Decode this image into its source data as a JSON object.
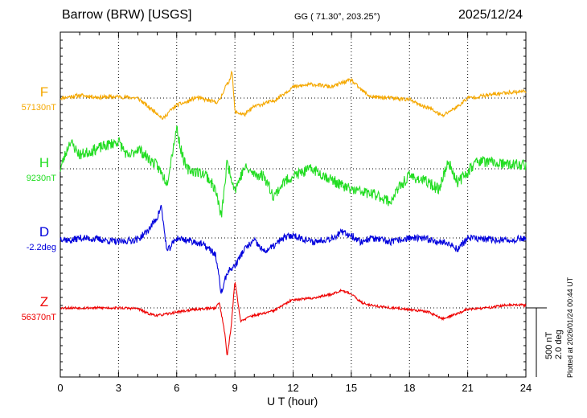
{
  "header": {
    "station": "Barrow (BRW)  [USGS]",
    "coordinates": "GG ( 71.30°, 203.25°)",
    "date": "2025/12/24"
  },
  "footer": {
    "plotted": "Plotted at 2026/01/24 00:44 UT"
  },
  "scale": {
    "nt": "500 nT",
    "deg": "2.0 deg"
  },
  "colors": {
    "F": "#f5a800",
    "H": "#22dd22",
    "D": "#0000dd",
    "Z": "#ee0000"
  },
  "chart_data": {
    "type": "line",
    "xlabel": "U T (hour)",
    "xlim": [
      0,
      24
    ],
    "x_ticks": [
      "0",
      "3",
      "6",
      "9",
      "12",
      "15",
      "18",
      "21",
      "24"
    ],
    "series": [
      {
        "name": "F",
        "baseline": "57130nT",
        "unit": "nT",
        "key": [
          [
            0,
            0
          ],
          [
            1,
            20
          ],
          [
            2,
            5
          ],
          [
            3,
            10
          ],
          [
            4,
            0
          ],
          [
            4.5,
            -60
          ],
          [
            5,
            -110
          ],
          [
            5.3,
            -150
          ],
          [
            5.6,
            -100
          ],
          [
            6,
            -50
          ],
          [
            6.5,
            -30
          ],
          [
            7,
            5
          ],
          [
            8,
            -30
          ],
          [
            8.2,
            -20
          ],
          [
            8.5,
            80
          ],
          [
            8.7,
            120
          ],
          [
            8.85,
            200
          ],
          [
            9,
            -100
          ],
          [
            9.5,
            -120
          ],
          [
            10,
            -60
          ],
          [
            11,
            -20
          ],
          [
            12,
            80
          ],
          [
            13,
            100
          ],
          [
            14,
            80
          ],
          [
            14.5,
            110
          ],
          [
            15,
            130
          ],
          [
            15.5,
            60
          ],
          [
            16,
            10
          ],
          [
            17,
            0
          ],
          [
            18,
            -10
          ],
          [
            18.5,
            -50
          ],
          [
            19,
            -70
          ],
          [
            19.7,
            -130
          ],
          [
            20,
            -100
          ],
          [
            20.5,
            -60
          ],
          [
            21,
            0
          ],
          [
            22,
            20
          ],
          [
            23,
            40
          ],
          [
            24,
            50
          ]
        ],
        "noise": 14,
        "seed": 11
      },
      {
        "name": "H",
        "baseline": "9230nT",
        "unit": "nT",
        "key": [
          [
            0,
            0
          ],
          [
            0.5,
            200
          ],
          [
            1,
            100
          ],
          [
            2,
            150
          ],
          [
            3,
            200
          ],
          [
            3.5,
            80
          ],
          [
            4,
            150
          ],
          [
            4.5,
            80
          ],
          [
            5,
            20
          ],
          [
            5.5,
            -100
          ],
          [
            6,
            300
          ],
          [
            6.2,
            150
          ],
          [
            6.5,
            0
          ],
          [
            7,
            -20
          ],
          [
            7.5,
            -40
          ],
          [
            8,
            -150
          ],
          [
            8.3,
            -350
          ],
          [
            8.6,
            50
          ],
          [
            9,
            -150
          ],
          [
            9.5,
            10
          ],
          [
            10,
            -40
          ],
          [
            10.5,
            -50
          ],
          [
            11,
            -200
          ],
          [
            11.5,
            -100
          ],
          [
            12,
            -50
          ],
          [
            13,
            0
          ],
          [
            14,
            -80
          ],
          [
            14.5,
            -120
          ],
          [
            15,
            -150
          ],
          [
            16,
            -180
          ],
          [
            16.5,
            -200
          ],
          [
            17,
            -240
          ],
          [
            17.5,
            -130
          ],
          [
            18,
            -50
          ],
          [
            19,
            -100
          ],
          [
            19.5,
            -150
          ],
          [
            20,
            50
          ],
          [
            20.5,
            -100
          ],
          [
            21,
            -20
          ],
          [
            21.5,
            60
          ],
          [
            22,
            50
          ],
          [
            23,
            30
          ],
          [
            24,
            30
          ]
        ],
        "noise": 40,
        "seed": 23
      },
      {
        "name": "D",
        "baseline": "-2.2deg",
        "unit": "deg",
        "key": [
          [
            0,
            0
          ],
          [
            0.5,
            -20
          ],
          [
            1,
            0
          ],
          [
            2,
            -10
          ],
          [
            3,
            -30
          ],
          [
            4,
            -10
          ],
          [
            4.5,
            50
          ],
          [
            5,
            150
          ],
          [
            5.2,
            230
          ],
          [
            5.5,
            -100
          ],
          [
            6,
            0
          ],
          [
            7,
            -30
          ],
          [
            7.5,
            -60
          ],
          [
            8,
            -120
          ],
          [
            8.3,
            -400
          ],
          [
            8.6,
            -250
          ],
          [
            9,
            -200
          ],
          [
            9.5,
            -80
          ],
          [
            10,
            -20
          ],
          [
            10.5,
            -100
          ],
          [
            11,
            -60
          ],
          [
            11.5,
            0
          ],
          [
            12,
            20
          ],
          [
            13,
            -30
          ],
          [
            14,
            0
          ],
          [
            14.5,
            40
          ],
          [
            15,
            20
          ],
          [
            15.5,
            -30
          ],
          [
            16,
            0
          ],
          [
            17,
            -30
          ],
          [
            18,
            0
          ],
          [
            19,
            -10
          ],
          [
            20,
            -40
          ],
          [
            20.5,
            -80
          ],
          [
            21,
            0
          ],
          [
            22,
            -10
          ],
          [
            23,
            -20
          ],
          [
            24,
            0
          ]
        ],
        "noise": 25,
        "seed": 37
      },
      {
        "name": "Z",
        "baseline": "56370nT",
        "unit": "nT",
        "key": [
          [
            0,
            0
          ],
          [
            1,
            0
          ],
          [
            2,
            0
          ],
          [
            3,
            0
          ],
          [
            4,
            -5
          ],
          [
            4.5,
            -40
          ],
          [
            5,
            -55
          ],
          [
            5.5,
            -45
          ],
          [
            6,
            -30
          ],
          [
            6.5,
            -20
          ],
          [
            7,
            -10
          ],
          [
            8,
            0
          ],
          [
            8.2,
            40
          ],
          [
            8.5,
            -200
          ],
          [
            8.6,
            -350
          ],
          [
            8.8,
            -150
          ],
          [
            9,
            200
          ],
          [
            9.3,
            -100
          ],
          [
            9.8,
            -60
          ],
          [
            10.5,
            -40
          ],
          [
            11,
            -20
          ],
          [
            12,
            60
          ],
          [
            13,
            70
          ],
          [
            14,
            100
          ],
          [
            14.5,
            130
          ],
          [
            15,
            100
          ],
          [
            15.5,
            40
          ],
          [
            16,
            20
          ],
          [
            17,
            0
          ],
          [
            18,
            -10
          ],
          [
            19,
            -30
          ],
          [
            19.7,
            -80
          ],
          [
            20.5,
            -40
          ],
          [
            21,
            -10
          ],
          [
            22,
            0
          ],
          [
            23,
            20
          ],
          [
            24,
            20
          ]
        ],
        "noise": 9,
        "seed": 53
      }
    ]
  }
}
